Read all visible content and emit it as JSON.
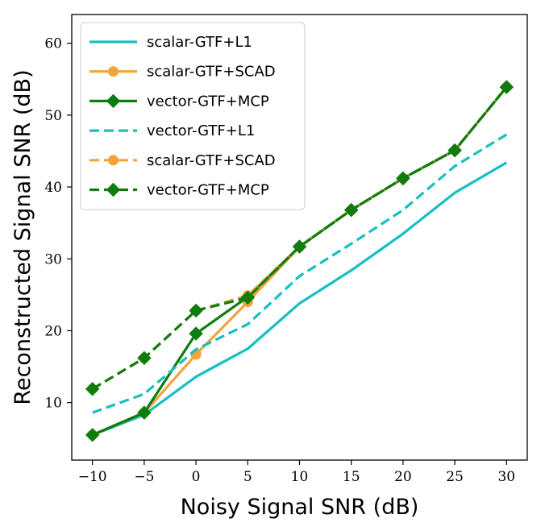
{
  "chart_data": {
    "type": "line",
    "xlabel": "Noisy Signal SNR (dB)",
    "ylabel": "Reconstructed Signal SNR (dB)",
    "xlim": [
      -12,
      32
    ],
    "ylim": [
      2,
      64
    ],
    "xticks": [
      -10,
      -5,
      0,
      5,
      10,
      15,
      20,
      25,
      30
    ],
    "xtick_labels": [
      "−10",
      "−5",
      "0",
      "5",
      "10",
      "15",
      "20",
      "25",
      "30"
    ],
    "yticks": [
      10,
      20,
      30,
      40,
      50,
      60
    ],
    "ytick_labels": [
      "10",
      "20",
      "30",
      "40",
      "50",
      "60"
    ],
    "grid": false,
    "legend_position": "top-left",
    "x": [
      -10,
      -5,
      0,
      5,
      10,
      15,
      20,
      25,
      30
    ],
    "series": [
      {
        "name": "scalar-GTF+L1",
        "color": "#17bfc2",
        "dash": "solid",
        "marker": "none",
        "values": [
          5.5,
          8.3,
          13.6,
          17.5,
          23.8,
          28.4,
          33.5,
          39.2,
          43.4
        ]
      },
      {
        "name": "scalar-GTF+SCAD",
        "color": "#f2a43a",
        "dash": "solid",
        "marker": "circle",
        "values": [
          5.5,
          8.6,
          16.7,
          24.0,
          31.7,
          36.8,
          41.2,
          45.1,
          53.9
        ]
      },
      {
        "name": "vector-GTF+MCP",
        "color": "#0f7c0f",
        "dash": "solid",
        "marker": "diamond",
        "values": [
          5.5,
          8.6,
          19.6,
          24.7,
          31.7,
          36.8,
          41.2,
          45.1,
          53.9
        ]
      },
      {
        "name": "vector-GTF+L1",
        "color": "#17bfc2",
        "dash": "dashed",
        "marker": "none",
        "values": [
          8.6,
          11.2,
          17.4,
          20.9,
          27.6,
          32.1,
          36.8,
          42.9,
          47.3
        ]
      },
      {
        "name": "scalar-GTF+SCAD",
        "color": "#f2a43a",
        "dash": "dashed",
        "marker": "circle",
        "values": [
          11.9,
          16.2,
          22.8,
          24.9,
          31.7,
          36.8,
          41.2,
          45.1,
          53.9
        ]
      },
      {
        "name": "vector-GTF+MCP",
        "color": "#0f7c0f",
        "dash": "dashed",
        "marker": "diamond",
        "values": [
          11.9,
          16.2,
          22.8,
          24.6,
          31.7,
          36.8,
          41.2,
          45.1,
          53.9
        ]
      }
    ]
  }
}
